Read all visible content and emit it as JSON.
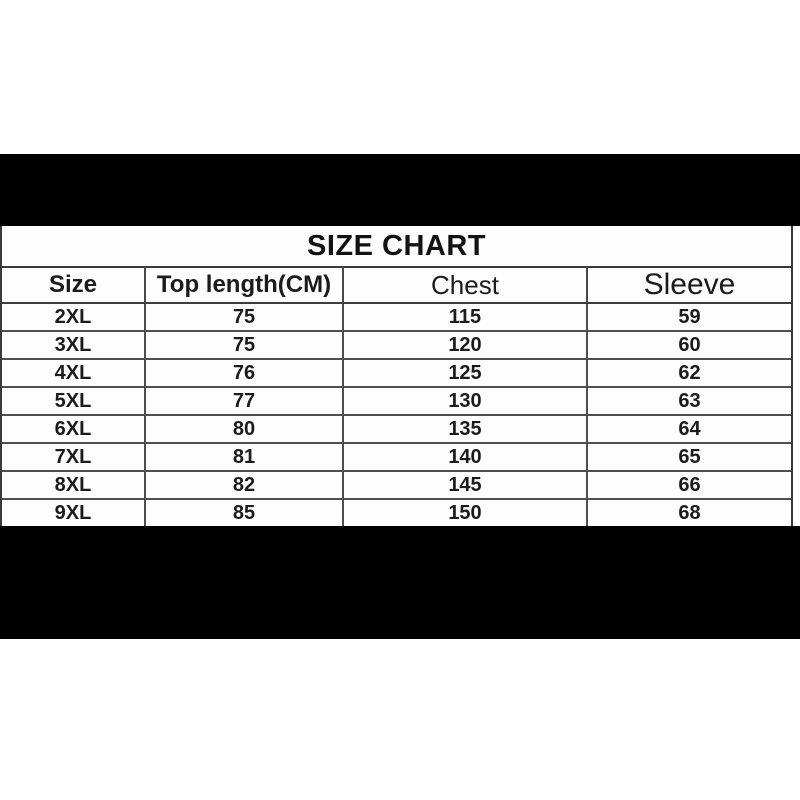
{
  "page": {
    "background_color": "#ffffff",
    "bar_color": "#000000",
    "grid_line_color": "#484848",
    "text_color": "#1b1b1b"
  },
  "title": "SIZE CHART",
  "chart_data": {
    "type": "table",
    "title": "SIZE CHART",
    "columns": [
      "Size",
      "Top length(CM)",
      "Chest",
      "Sleeve"
    ],
    "rows": [
      [
        "2XL",
        75,
        115,
        59
      ],
      [
        "3XL",
        75,
        120,
        60
      ],
      [
        "4XL",
        76,
        125,
        62
      ],
      [
        "5XL",
        77,
        130,
        63
      ],
      [
        "6XL",
        80,
        135,
        64
      ],
      [
        "7XL",
        81,
        140,
        65
      ],
      [
        "8XL",
        82,
        145,
        66
      ],
      [
        "9XL",
        85,
        150,
        68
      ]
    ],
    "layout": {
      "legend": "none",
      "grid": "on",
      "top_bar": "black",
      "bottom_bar": "black"
    }
  },
  "cell_names": [
    "cell-size",
    "cell-top-length",
    "cell-chest",
    "cell-sleeve"
  ]
}
